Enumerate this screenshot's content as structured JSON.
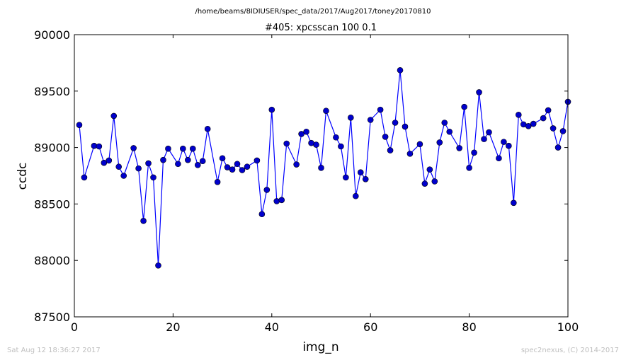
{
  "header": {
    "path": "/home/beams/8IDIUSER/spec_data/2017/Aug2017/toney20170810"
  },
  "footer": {
    "timestamp": "Sat Aug 12 18:36:27 2017",
    "credit": "spec2nexus, (C) 2014-2017"
  },
  "colors": {
    "series": "#0000ff",
    "marker_fill": "#0000cc"
  },
  "chart_data": {
    "type": "line",
    "title": "#405: xpcsscan 100 0.1",
    "xlabel": "img_n",
    "ylabel": "ccdc",
    "xlim": [
      0,
      100
    ],
    "ylim": [
      87500,
      90000
    ],
    "xticks": [
      0,
      20,
      40,
      60,
      80,
      100
    ],
    "yticks": [
      87500,
      88000,
      88500,
      89000,
      89500,
      90000
    ],
    "grid": false,
    "markers": "circle",
    "x": [
      1,
      2,
      4,
      5,
      6,
      7,
      8,
      9,
      10,
      12,
      13,
      14,
      15,
      16,
      17,
      18,
      19,
      21,
      22,
      23,
      24,
      25,
      26,
      27,
      29,
      30,
      31,
      32,
      33,
      34,
      35,
      37,
      38,
      39,
      40,
      41,
      42,
      43,
      45,
      46,
      47,
      48,
      49,
      50,
      51,
      53,
      54,
      55,
      56,
      57,
      58,
      59,
      60,
      62,
      63,
      64,
      65,
      66,
      67,
      68,
      70,
      71,
      72,
      73,
      74,
      75,
      76,
      78,
      79,
      80,
      81,
      82,
      83,
      84,
      86,
      87,
      88,
      89,
      90,
      91,
      92,
      93,
      95,
      96,
      97,
      98,
      99,
      100
    ],
    "y": [
      89200,
      88735,
      89015,
      89010,
      88865,
      88885,
      89280,
      88830,
      88750,
      88995,
      88815,
      88350,
      88860,
      88735,
      87955,
      88890,
      88990,
      88855,
      88990,
      88890,
      88990,
      88845,
      88880,
      89165,
      88695,
      88905,
      88825,
      88805,
      88855,
      88800,
      88830,
      88885,
      88410,
      88625,
      89335,
      88525,
      88535,
      89035,
      88850,
      89120,
      89140,
      89040,
      89025,
      88820,
      89325,
      89090,
      89010,
      88735,
      89265,
      88570,
      88780,
      88720,
      89245,
      89335,
      89095,
      88975,
      89220,
      89685,
      89185,
      88945,
      89030,
      88680,
      88805,
      88700,
      89045,
      89220,
      89140,
      88995,
      89360,
      88820,
      88955,
      89490,
      89075,
      89135,
      88905,
      89050,
      89015,
      88510,
      89290,
      89205,
      89190,
      89210,
      89260,
      89330,
      89170,
      89000,
      89145,
      89405
    ]
  }
}
